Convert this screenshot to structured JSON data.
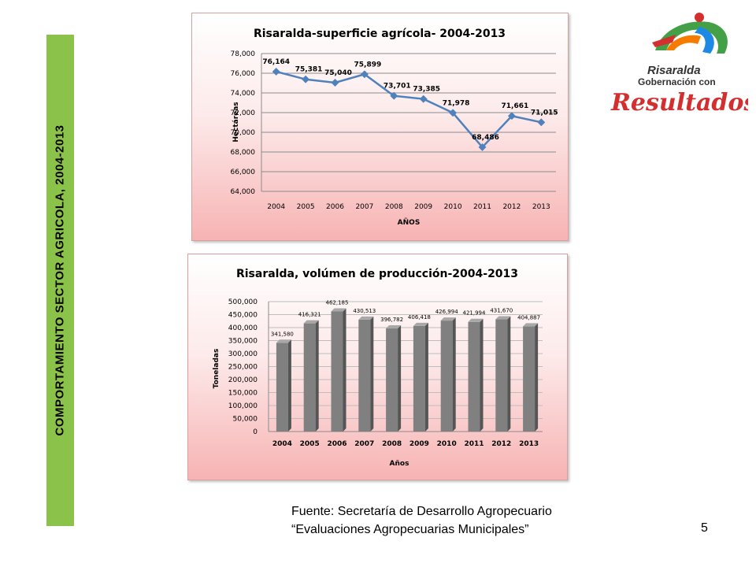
{
  "sidebar": {
    "title": "COMPORTAMIENTO SECTOR AGRICOLA,  2004-2013"
  },
  "footer": {
    "source_line1": "Fuente: Secretaría de Desarrollo Agropecuario",
    "source_line2": "“Evaluaciones Agropecuarias Municipales”",
    "page_number": "5"
  },
  "logo": {
    "brand_line1": "Risaralda",
    "brand_line2": "Gobernación con",
    "brand_line3": "Resultados",
    "colors": {
      "red": "#d32f2f",
      "green": "#43a047",
      "blue": "#1e88e5",
      "orange": "#f57c00",
      "dark": "#333333"
    }
  },
  "chart_data": [
    {
      "type": "line",
      "title": "Risaralda-superficie agrícola- 2004-2013",
      "xlabel": "AÑOS",
      "ylabel": "Hectáreas",
      "categories": [
        "2004",
        "2005",
        "2006",
        "2007",
        "2008",
        "2009",
        "2010",
        "2011",
        "2012",
        "2013"
      ],
      "values": [
        76164,
        75381,
        75040,
        75899,
        73701,
        73385,
        71978,
        68486,
        71661,
        71015
      ],
      "data_labels": [
        "76,164",
        "75,381",
        "75,040",
        "75,899",
        "73,701",
        "73,385",
        "71,978",
        "68,486",
        "71,661",
        "71,015"
      ],
      "ylim": [
        64000,
        78000
      ],
      "yticks": [
        "64,000",
        "66,000",
        "68,000",
        "70,000",
        "72,000",
        "74,000",
        "76,000",
        "78,000"
      ],
      "grid": true,
      "line_color": "#4f81bd"
    },
    {
      "type": "bar",
      "title": "Risaralda, volúmen de producción-2004-2013",
      "xlabel": "Años",
      "ylabel": "Toneladas",
      "categories": [
        "2004",
        "2005",
        "2006",
        "2007",
        "2008",
        "2009",
        "2010",
        "2011",
        "2012",
        "2013"
      ],
      "values": [
        341580,
        416321,
        462185,
        430513,
        396782,
        406418,
        426994,
        421994,
        431670,
        404887
      ],
      "data_labels": [
        "341,580",
        "416,321",
        "462,185",
        "430,513",
        "396,782",
        "406,418",
        "426,994",
        "421,994",
        "431,670",
        "404,887"
      ],
      "ylim": [
        0,
        500000
      ],
      "yticks": [
        "0",
        "50,000",
        "100,000",
        "150,000",
        "200,000",
        "250,000",
        "300,000",
        "350,000",
        "400,000",
        "450,000",
        "500,000"
      ],
      "grid": true,
      "bar_color": "#808080"
    }
  ]
}
